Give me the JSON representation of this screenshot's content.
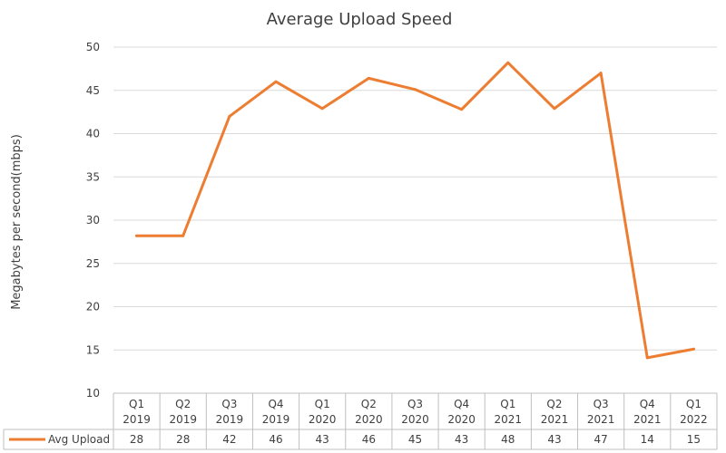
{
  "chart_data": {
    "type": "line",
    "title": "Average Upload Speed",
    "xlabel": "",
    "ylabel": "Megabytes per second(mbps)",
    "ylim": [
      10,
      50
    ],
    "yticks": [
      "10",
      "15",
      "20",
      "25",
      "30",
      "35",
      "40",
      "45",
      "50"
    ],
    "grid": true,
    "legend_position": "bottom-left (data table)",
    "categories": [
      [
        "Q1",
        "2019"
      ],
      [
        "Q2",
        "2019"
      ],
      [
        "Q3",
        "2019"
      ],
      [
        "Q4",
        "2019"
      ],
      [
        "Q1",
        "2020"
      ],
      [
        "Q2",
        "2020"
      ],
      [
        "Q3",
        "2020"
      ],
      [
        "Q4",
        "2020"
      ],
      [
        "Q1",
        "2021"
      ],
      [
        "Q2",
        "2021"
      ],
      [
        "Q3",
        "2021"
      ],
      [
        "Q4",
        "2021"
      ],
      [
        "Q1",
        "2022"
      ]
    ],
    "series": [
      {
        "name": "Avg Upload",
        "color": "#ED7D31",
        "values": [
          28.2,
          28.2,
          42,
          46,
          42.9,
          46.4,
          45.1,
          42.8,
          48.2,
          42.9,
          47,
          14.1,
          15.1
        ],
        "table_values": [
          "28",
          "28",
          "42",
          "46",
          "43",
          "46",
          "45",
          "43",
          "48",
          "43",
          "47",
          "14",
          "15"
        ]
      }
    ]
  }
}
